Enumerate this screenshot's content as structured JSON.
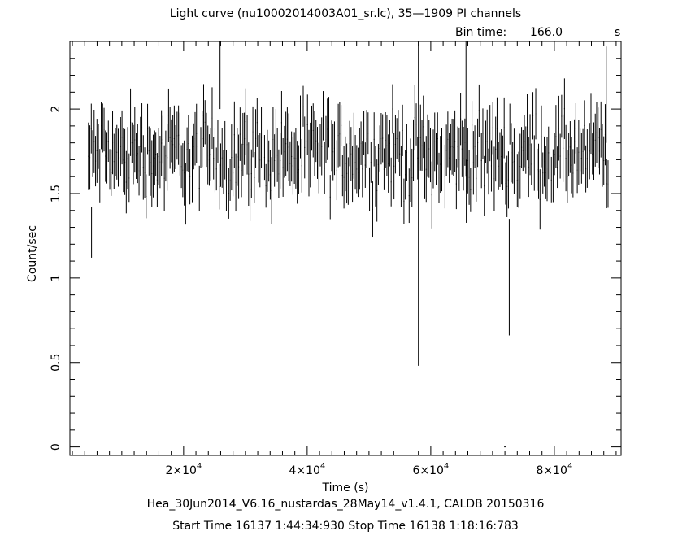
{
  "chart_data": {
    "type": "line",
    "title": "Light curve (nu10002014003A01_sr.lc), 35—1909 PI channels",
    "bin_time_label": "Bin time:",
    "bin_time_value": "166.0",
    "bin_time_unit": "s",
    "xlabel": "Time (s)",
    "ylabel": "Count/sec",
    "footer_line1": "Hea_30Jun2014_V6.16_nustardas_28May14_v1.4.1, CALDB 20150316",
    "footer_line2": "Start Time 16137  1:44:34:930    Stop Time 16138  1:18:16:783",
    "xlim": [
      1600,
      90800
    ],
    "ylim": [
      -0.05,
      2.4
    ],
    "x_ticks": [
      20000,
      40000,
      60000,
      80000
    ],
    "x_tick_labels": [
      "2×10^4",
      "4×10^4",
      "6×10^4",
      "8×10^4"
    ],
    "y_ticks": [
      0,
      0.5,
      1,
      1.5,
      2
    ],
    "y_tick_labels": [
      "0",
      "0.5",
      "1",
      "1.5",
      "2"
    ],
    "segments": [
      [
        4600,
        9600
      ],
      [
        9800,
        15400
      ],
      [
        15500,
        21200
      ],
      [
        21400,
        27000
      ],
      [
        27300,
        32800
      ],
      [
        33100,
        38700
      ],
      [
        38900,
        44500
      ],
      [
        44800,
        50400
      ],
      [
        50600,
        56200
      ],
      [
        56500,
        62000
      ],
      [
        62300,
        67900
      ],
      [
        68200,
        73700
      ],
      [
        74000,
        79600
      ],
      [
        79800,
        85400
      ],
      [
        85700,
        88900
      ]
    ],
    "series": [
      {
        "color": "#000000",
        "mean": 1.7,
        "scatter": 0.22,
        "outliers": [
          {
            "x": 58000,
            "low": 0.48,
            "high": 2.4
          },
          {
            "x": 72700,
            "low": 0.66,
            "high": 1.35
          },
          {
            "x": 25900,
            "low": 2.0,
            "high": 2.4
          },
          {
            "x": 65700,
            "low": 1.6,
            "high": 2.4
          },
          {
            "x": 88400,
            "low": 1.8,
            "high": 2.37
          },
          {
            "x": 5100,
            "low": 1.12,
            "high": 1.42
          },
          {
            "x": 72000,
            "low": 0.0,
            "high": 0.0
          }
        ]
      }
    ]
  }
}
